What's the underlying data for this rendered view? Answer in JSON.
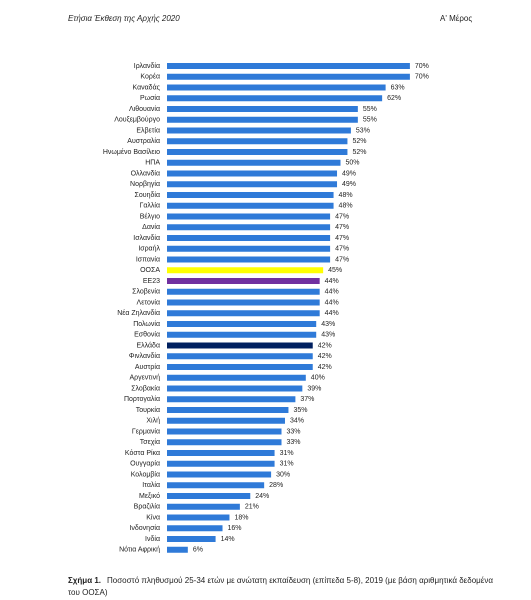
{
  "header": {
    "left": "Ετήσια Έκθεση της Αρχής 2020",
    "right": "Α' Μέρος"
  },
  "caption": {
    "label": "Σχήμα 1.",
    "text": "Ποσοστό πληθυσμού 25-34 ετών με ανώτατη εκπαίδευση (επίπεδα 5-8), 2019 (με βάση αριθμητικά δεδομένα του ΟΟΣΑ)"
  },
  "chart_data": {
    "type": "hbar",
    "categories": [
      "Ιρλανδία",
      "Κορέα",
      "Καναδάς",
      "Ρωσία",
      "Λιθουανία",
      "Λουξεμβούργο",
      "Ελβετία",
      "Αυστραλία",
      "Ηνωμένο Βασίλειο",
      "ΗΠΑ",
      "Ολλανδία",
      "Νορβηγία",
      "Σουηδία",
      "Γαλλία",
      "Βέλγιο",
      "Δανία",
      "Ισλανδία",
      "Ισραήλ",
      "Ισπανία",
      "ΟΟΣΑ",
      "ΕΕ23",
      "Σλοβενία",
      "Λετονία",
      "Νέα Ζηλανδία",
      "Πολωνία",
      "Εσθονία",
      "Ελλάδα",
      "Φινλανδία",
      "Αυστρία",
      "Αργεντινή",
      "Σλοβακία",
      "Πορτογαλία",
      "Τουρκία",
      "Χιλή",
      "Γερμανία",
      "Τσεχία",
      "Κόστα Ρίκα",
      "Ουγγαρία",
      "Κολομβία",
      "Ιταλία",
      "Μεξικό",
      "Βραζιλία",
      "Κίνα",
      "Ινδονησία",
      "Ινδία",
      "Νότια Αφρική"
    ],
    "values": [
      70,
      70,
      63,
      62,
      55,
      55,
      53,
      52,
      52,
      50,
      49,
      49,
      48,
      48,
      47,
      47,
      47,
      47,
      47,
      45,
      44,
      44,
      44,
      44,
      43,
      43,
      42,
      42,
      42,
      40,
      39,
      37,
      35,
      34,
      33,
      33,
      31,
      31,
      30,
      28,
      24,
      21,
      18,
      16,
      14,
      6
    ],
    "value_labels": [
      "70%",
      "70%",
      "63%",
      "62%",
      "55%",
      "55%",
      "53%",
      "52%",
      "52%",
      "50%",
      "49%",
      "49%",
      "48%",
      "48%",
      "47%",
      "47%",
      "47%",
      "47%",
      "47%",
      "45%",
      "44%",
      "44%",
      "44%",
      "44%",
      "43%",
      "43%",
      "42%",
      "42%",
      "42%",
      "40%",
      "39%",
      "37%",
      "35%",
      "34%",
      "33%",
      "33%",
      "31%",
      "31%",
      "30%",
      "28%",
      "24%",
      "21%",
      "18%",
      "16%",
      "14%",
      "6%"
    ],
    "color": "#2f7ad8",
    "highlights": [
      {
        "index": 19,
        "color": "#ffff00"
      },
      {
        "index": 20,
        "color": "#7030a0"
      },
      {
        "index": 26,
        "color": "#002060"
      }
    ]
  }
}
